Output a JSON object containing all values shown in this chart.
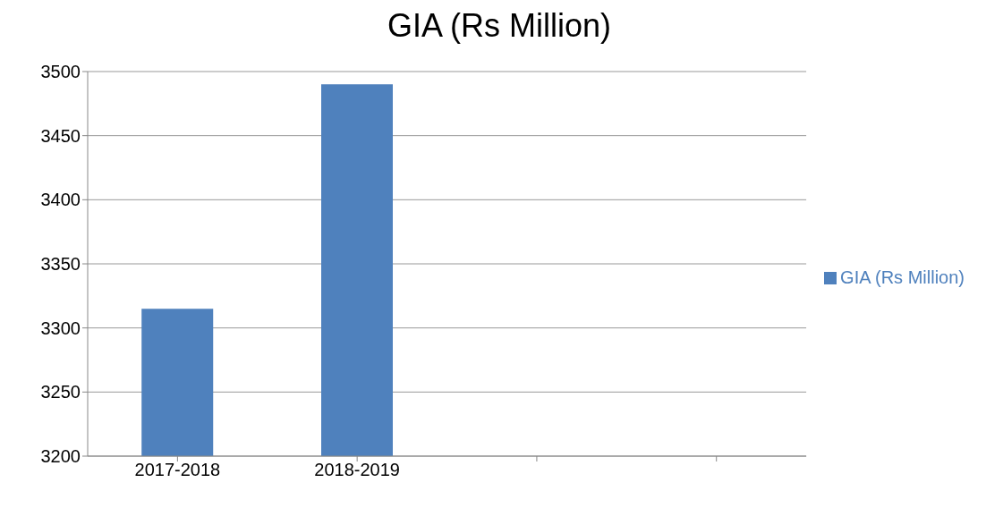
{
  "chart_data": {
    "type": "bar",
    "title": "GIA (Rs Million)",
    "categories": [
      "2017-2018",
      "2018-2019",
      null,
      null
    ],
    "series": [
      {
        "name": "GIA (Rs Million)",
        "color": "#4f81bd",
        "values": [
          3315,
          3490,
          null,
          null
        ]
      }
    ],
    "ylim": [
      3200,
      3500
    ],
    "yticks": [
      3200,
      3250,
      3300,
      3350,
      3400,
      3450,
      3500
    ],
    "grid": "y",
    "legend": "right"
  }
}
